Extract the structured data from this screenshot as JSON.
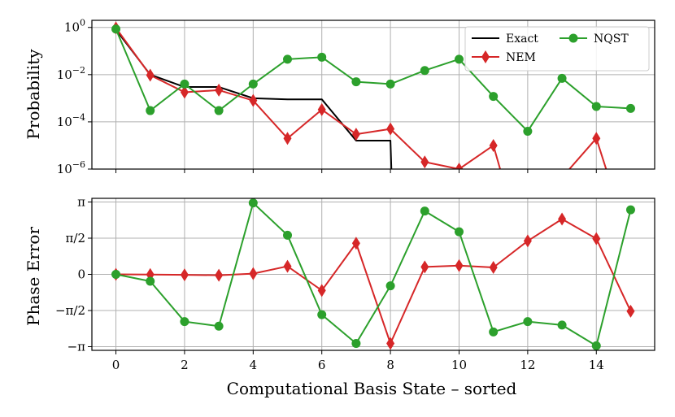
{
  "chart_data": [
    {
      "type": "line",
      "ylabel": "Probability",
      "yscale": "log",
      "ylim": [
        1e-06,
        2
      ],
      "xlim": [
        -0.7,
        15.7
      ],
      "grid": true,
      "legend_position": "top-right",
      "x": [
        0,
        1,
        2,
        3,
        4,
        5,
        6,
        7,
        8,
        9,
        10,
        11,
        12,
        13,
        14,
        15
      ],
      "ytick_labels": [
        "10^0",
        "10^-2",
        "10^-4",
        "10^-6"
      ],
      "series": [
        {
          "name": "Exact",
          "color": "#000000",
          "marker": "none",
          "style": "step-line",
          "x": [
            0,
            1,
            2,
            3,
            4,
            5,
            6,
            7,
            8,
            8.05
          ],
          "values": [
            0.8,
            0.01,
            0.003,
            0.003,
            0.001,
            0.0009,
            0.0009,
            1.6e-05,
            1.6e-05,
            1e-07
          ]
        },
        {
          "name": "NEM",
          "color": "#d62728",
          "marker": "diamond",
          "x": [
            0,
            1,
            2,
            3,
            4,
            5,
            6,
            7,
            8,
            9,
            10,
            11,
            11.3,
            12.9,
            14,
            14.4
          ],
          "values": [
            0.95,
            0.0095,
            0.0018,
            0.0022,
            0.0008,
            2e-05,
            0.00033,
            3e-05,
            5e-05,
            2e-06,
            1e-06,
            1e-05,
            3e-07,
            3e-07,
            2e-05,
            3e-07
          ]
        },
        {
          "name": "NQST",
          "color": "#2ca02c",
          "marker": "circle",
          "x": [
            0,
            1,
            2,
            3,
            4,
            5,
            6,
            7,
            8,
            9,
            10,
            11,
            12,
            13,
            14,
            15
          ],
          "values": [
            0.85,
            0.0003,
            0.004,
            0.0003,
            0.004,
            0.045,
            0.055,
            0.005,
            0.004,
            0.015,
            0.045,
            0.0012,
            4e-05,
            0.007,
            0.00045,
            0.00037
          ]
        }
      ]
    },
    {
      "type": "line",
      "ylabel": "Phase Error",
      "xlabel": "Computational Basis State – sorted",
      "ylim": [
        -3.3,
        3.3
      ],
      "xlim": [
        -0.7,
        15.7
      ],
      "grid": true,
      "x": [
        0,
        1,
        2,
        3,
        4,
        5,
        6,
        7,
        8,
        9,
        10,
        11,
        12,
        13,
        14,
        15
      ],
      "xtick_labels": [
        "0",
        "2",
        "4",
        "6",
        "8",
        "10",
        "12",
        "14"
      ],
      "ytick_labels": [
        "π",
        "π/2",
        "0",
        "−π/2",
        "−π"
      ],
      "series": [
        {
          "name": "NEM",
          "color": "#d62728",
          "marker": "diamond",
          "values": [
            0.0,
            -0.01,
            -0.02,
            -0.04,
            0.03,
            0.35,
            -0.7,
            1.35,
            -3.0,
            0.32,
            0.38,
            0.3,
            1.45,
            2.4,
            1.55,
            -1.6
          ]
        },
        {
          "name": "NQST",
          "color": "#2ca02c",
          "marker": "circle",
          "values": [
            0.0,
            -0.3,
            -2.05,
            -2.25,
            3.1,
            1.7,
            -1.75,
            -3.0,
            -0.5,
            2.75,
            1.85,
            -2.5,
            -2.05,
            -2.2,
            -3.1,
            2.8
          ]
        }
      ]
    }
  ]
}
